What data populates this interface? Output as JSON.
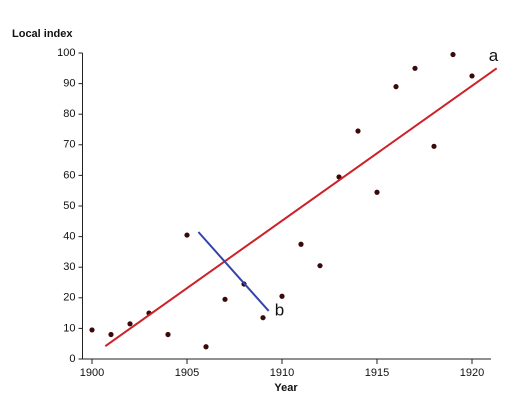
{
  "chart_data": {
    "type": "scatter",
    "y_label": "Local index",
    "x_label": "Year",
    "x": [
      1900,
      1901,
      1902,
      1903,
      1904,
      1905,
      1906,
      1907,
      1908,
      1909,
      1910,
      1911,
      1912,
      1913,
      1914,
      1915,
      1916,
      1917,
      1918,
      1919,
      1920
    ],
    "values": [
      9.5,
      8,
      11.5,
      15,
      8,
      40.5,
      4,
      19.5,
      24.5,
      13.5,
      20.5,
      37.5,
      30.5,
      59.5,
      74.5,
      54.5,
      89,
      95,
      69.5,
      99.5,
      92.5
    ],
    "color": "#3a0a0a",
    "xlim": [
      1899.5,
      1921
    ],
    "ylim": [
      0,
      100
    ],
    "xticks": [
      1900,
      1905,
      1910,
      1915,
      1920
    ],
    "yticks": [
      0,
      10,
      20,
      30,
      40,
      50,
      60,
      70,
      80,
      90,
      100
    ],
    "lines": [
      {
        "name": "a",
        "color": "#cc2229",
        "x": [
          1900.7,
          1921.3
        ],
        "y": [
          4.2,
          95
        ]
      },
      {
        "name": "b",
        "color": "#3344aa",
        "x": [
          1905.6,
          1909.3
        ],
        "y": [
          41.5,
          15.7
        ]
      }
    ]
  }
}
